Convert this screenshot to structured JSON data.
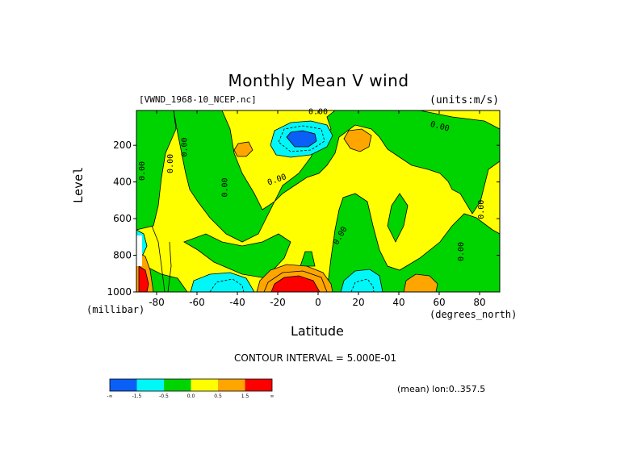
{
  "chart_data": {
    "type": "heatmap",
    "title": "Monthly Mean V wind",
    "dataset_label": "[VWND_1968-10_NCEP.nc]",
    "units_label": "(units:m/s)",
    "xlabel": "Latitude",
    "x_units": "(degrees_north)",
    "ylabel": "Level",
    "y_units": "(millibar)",
    "xlim": [
      -90,
      90
    ],
    "ylim": [
      1000,
      10
    ],
    "x_ticks": [
      -80,
      -60,
      -40,
      -20,
      0,
      20,
      40,
      60,
      80
    ],
    "y_ticks": [
      200,
      400,
      600,
      800,
      1000
    ],
    "contour_interval_text": "CONTOUR INTERVAL = 5.000E-01",
    "contour_labels": [
      "0.00",
      "0.00",
      "0.00",
      "0.00",
      "0.00",
      "0.00",
      "0.00",
      "0.00",
      "0.00",
      "0.00"
    ],
    "averaging_text": "(mean) lon:0..357.5",
    "colorbar": {
      "colors": [
        "#0a5ff7",
        "#00f7f7",
        "#00d400",
        "#ffff00",
        "#ffa500",
        "#ff0000"
      ],
      "tick_labels": [
        "-∞",
        "-1.5",
        "-0.5",
        "0.0",
        "0.5",
        "1.5",
        "∞"
      ]
    },
    "features": [
      {
        "lat": -12,
        "level": 150,
        "value": -2.0
      },
      {
        "lat": -10,
        "level": 970,
        "value": 2.0
      },
      {
        "lat": 18,
        "level": 960,
        "value": -1.0
      },
      {
        "lat": -58,
        "level": 960,
        "value": -1.0
      },
      {
        "lat": 20,
        "level": 150,
        "value": 1.0
      },
      {
        "lat": -44,
        "level": 180,
        "value": 1.0
      },
      {
        "lat": 52,
        "level": 950,
        "value": 1.0
      },
      {
        "lat": 80,
        "level": 960,
        "value": -0.5
      },
      {
        "lat": -86,
        "level": 900,
        "value": 1.5
      }
    ]
  }
}
